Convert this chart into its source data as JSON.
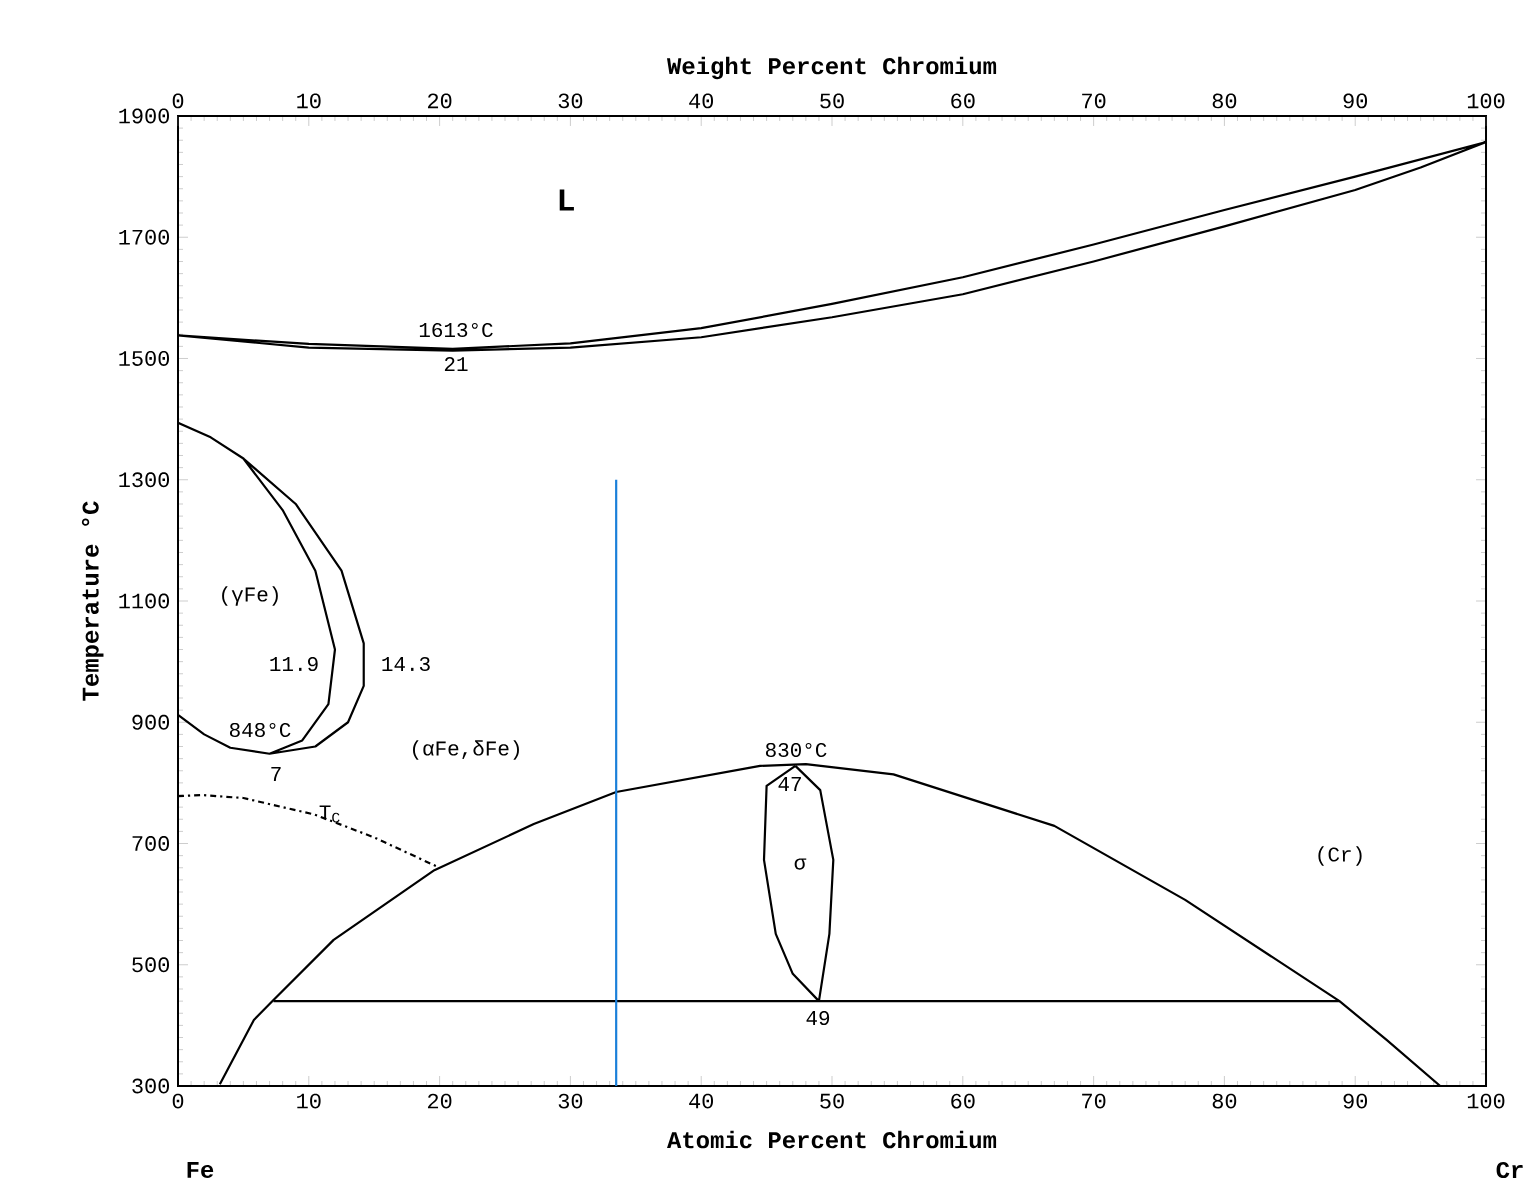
{
  "chart_data": {
    "type": "line",
    "xlabel": "Atomic Percent Chromium",
    "x2label": "Weight Percent Chromium",
    "ylabel": "Temperature °C",
    "xlim": [
      0,
      100
    ],
    "xticks": [
      0,
      10,
      20,
      30,
      40,
      50,
      60,
      70,
      80,
      90,
      100
    ],
    "x2lim": [
      0,
      100
    ],
    "x2ticks": [
      0,
      10,
      20,
      30,
      40,
      50,
      60,
      70,
      80,
      90,
      100
    ],
    "ylim": [
      300,
      1900
    ],
    "yticks": [
      300,
      500,
      700,
      900,
      1100,
      1300,
      1500,
      1700,
      1900
    ],
    "marker": "none",
    "series": [
      {
        "color": "#000000",
        "x": [
          0,
          10,
          21,
          30,
          40,
          50,
          60,
          70,
          80,
          90,
          100,
          null,
          0,
          10,
          21,
          30,
          40,
          50,
          60,
          70,
          80,
          90,
          95,
          100
        ],
        "values": [
          1538,
          1524,
          1516,
          1525,
          1550,
          1590,
          1634,
          1688,
          1745,
          1800,
          1857,
          null,
          1538,
          1518,
          1513,
          1518,
          1535,
          1568,
          1606,
          1660,
          1718,
          1778,
          1815,
          1857
        ]
      },
      {
        "color": "#000000",
        "x": [
          0,
          2.5,
          5,
          9,
          12.5,
          14.2,
          14.2,
          13,
          10.5,
          7,
          4,
          2,
          0,
          null,
          5,
          8,
          10.5,
          12,
          11.5,
          9.5,
          7
        ],
        "values": [
          1394,
          1370,
          1335,
          1260,
          1150,
          1030,
          960,
          900,
          860,
          848,
          858,
          880,
          912,
          null,
          1335,
          1250,
          1150,
          1020,
          930,
          870,
          848
        ]
      },
      {
        "color": "#000000",
        "line_style": "dashdot",
        "x": [
          0,
          1.8,
          5,
          10.4,
          15,
          19.8
        ],
        "values": [
          778,
          780,
          775,
          748,
          710,
          662
        ]
      },
      {
        "color": "#000000",
        "x": [
          3.2,
          5.8,
          7.3,
          11.9,
          19.6,
          27.2,
          33.5,
          44.5,
          48,
          54.7,
          67,
          77,
          88.8,
          92.4,
          96.5
        ],
        "values": [
          303,
          409,
          442,
          541,
          656,
          732,
          785,
          828,
          831,
          814,
          729,
          607,
          440,
          376,
          300
        ]
      },
      {
        "color": "#000000",
        "x": [
          7.3,
          88.8
        ],
        "values": [
          440,
          440
        ]
      },
      {
        "color": "#000000",
        "x": [
          47.2,
          45,
          44.8,
          45.7,
          47,
          49,
          null,
          49,
          49.8,
          50.1,
          49.1,
          47.2
        ],
        "values": [
          828,
          795,
          673,
          551,
          485,
          440,
          null,
          440,
          551,
          673,
          788,
          828
        ]
      },
      {
        "color": "#1a7fd9",
        "x": [
          33.5,
          33.5
        ],
        "values": [
          300,
          1300
        ]
      }
    ],
    "annotations": [
      "L",
      "1613°C",
      "21",
      "(γFe)",
      "11.9",
      "14.3",
      "848°C",
      "7",
      "T$_{C}$",
      "(αFe,δFe)",
      "830°C",
      "47",
      "σ",
      "49",
      "(Cr)",
      "Fe",
      "Cr"
    ]
  }
}
